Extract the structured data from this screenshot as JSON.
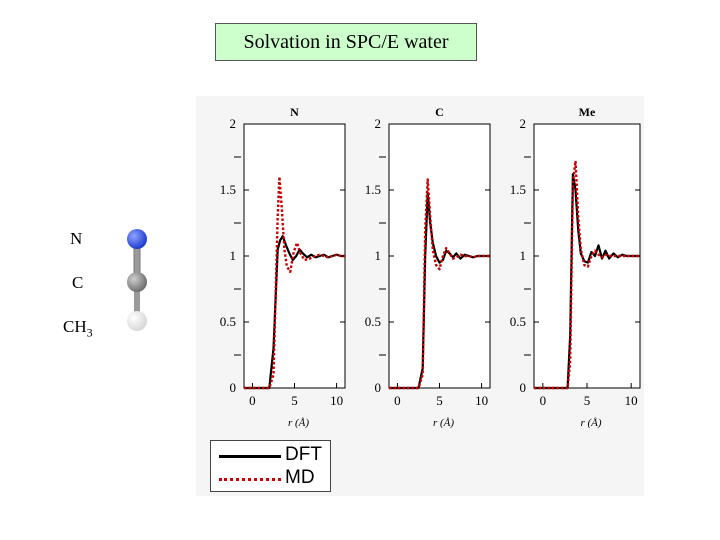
{
  "title": "Solvation in SPC/E water",
  "molecule": {
    "labels": [
      "N",
      "C",
      "CH",
      "3"
    ],
    "colors": {
      "N": "#1f3fd0",
      "C": "#6f6f6f",
      "CH3": "#d9d9d9"
    }
  },
  "legend": {
    "entries": [
      {
        "name": "DFT",
        "color": "#000000",
        "dash": "solid"
      },
      {
        "name": "MD",
        "color": "#cc0000",
        "dash": "dotted"
      }
    ]
  },
  "chart_data": [
    {
      "type": "line",
      "title": "N",
      "xlabel": "r (Å)",
      "ylabel": "",
      "xlim": [
        -1,
        11
      ],
      "ylim": [
        0,
        2
      ],
      "xticks": [
        "0",
        "5",
        "10"
      ],
      "yticks": [
        "0",
        "0.5",
        "1",
        "1.5",
        "2"
      ],
      "series": [
        {
          "name": "DFT",
          "color": "#000000",
          "x": [
            -1,
            2,
            2.5,
            3,
            3.3,
            3.6,
            4.0,
            4.4,
            4.8,
            5.2,
            5.6,
            6.0,
            6.5,
            7,
            7.5,
            8,
            8.5,
            9,
            9.5,
            10,
            10.5,
            11
          ],
          "y": [
            0,
            0,
            0.3,
            1.05,
            1.12,
            1.15,
            1.08,
            1.02,
            0.97,
            1.0,
            1.05,
            1.02,
            0.99,
            1.01,
            0.99,
            1.0,
            1.01,
            0.99,
            1.0,
            1.01,
            1.0,
            1.0
          ]
        },
        {
          "name": "MD",
          "color": "#cc0000",
          "x": [
            -1,
            2,
            2.5,
            3,
            3.2,
            3.5,
            3.8,
            4.1,
            4.5,
            4.9,
            5.3,
            5.7,
            6.2,
            6.8,
            7.5,
            8,
            8.5,
            9,
            9.5,
            10,
            10.5,
            11
          ],
          "y": [
            0,
            0,
            0.1,
            1.3,
            1.6,
            1.35,
            1.05,
            0.92,
            0.88,
            1.03,
            1.1,
            1.02,
            0.97,
            0.98,
            1.0,
            1.01,
            1.0,
            0.99,
            1.0,
            1.01,
            1.0,
            1.0
          ]
        }
      ]
    },
    {
      "type": "line",
      "title": "C",
      "xlabel": "r (Å)",
      "ylabel": "",
      "xlim": [
        -1,
        11
      ],
      "ylim": [
        0,
        2
      ],
      "xticks": [
        "0",
        "5",
        "10"
      ],
      "yticks": [
        "0",
        "0.5",
        "1",
        "1.5",
        "2"
      ],
      "series": [
        {
          "name": "DFT",
          "color": "#000000",
          "x": [
            -1,
            2.5,
            3,
            3.3,
            3.6,
            3.9,
            4.2,
            4.6,
            5.0,
            5.4,
            5.8,
            6.2,
            6.6,
            7,
            7.5,
            8,
            8.5,
            9,
            9.5,
            10,
            10.5,
            11
          ],
          "y": [
            0,
            0,
            0.15,
            1.0,
            1.48,
            1.25,
            1.1,
            1.0,
            0.95,
            0.97,
            1.04,
            1.02,
            0.99,
            1.02,
            0.98,
            1.01,
            1.0,
            0.99,
            1.0,
            1.0,
            1.0,
            1.0
          ]
        },
        {
          "name": "MD",
          "color": "#cc0000",
          "x": [
            -1,
            2.5,
            3,
            3.3,
            3.6,
            3.9,
            4.2,
            4.6,
            5.0,
            5.4,
            5.8,
            6.2,
            6.6,
            7,
            7.5,
            8,
            8.5,
            9,
            9.5,
            10,
            10.5,
            11
          ],
          "y": [
            0,
            0,
            0.1,
            1.2,
            1.58,
            1.3,
            1.05,
            0.93,
            0.9,
            1.0,
            1.06,
            1.02,
            0.98,
            0.99,
            1.01,
            1.0,
            1.0,
            0.99,
            1.0,
            1.0,
            1.0,
            1.0
          ]
        }
      ]
    },
    {
      "type": "line",
      "title": "Me",
      "xlabel": "r (Å)",
      "ylabel": "",
      "xlim": [
        -1,
        11
      ],
      "ylim": [
        0,
        2
      ],
      "xticks": [
        "0",
        "5",
        "10"
      ],
      "yticks": [
        "0",
        "0.5",
        "1",
        "1.5",
        "2"
      ],
      "series": [
        {
          "name": "DFT",
          "color": "#000000",
          "x": [
            -1,
            2.8,
            3.1,
            3.4,
            3.7,
            4.0,
            4.3,
            4.7,
            5.1,
            5.5,
            5.9,
            6.3,
            6.7,
            7.1,
            7.5,
            8,
            8.5,
            9,
            9.5,
            10,
            10.5,
            11
          ],
          "y": [
            0,
            0,
            0.4,
            1.62,
            1.5,
            1.2,
            1.02,
            0.96,
            0.95,
            1.03,
            1.0,
            1.08,
            0.98,
            1.04,
            0.98,
            1.02,
            0.99,
            1.01,
            1.0,
            1.0,
            1.0,
            1.0
          ]
        },
        {
          "name": "MD",
          "color": "#cc0000",
          "x": [
            -1,
            2.8,
            3.1,
            3.4,
            3.7,
            4.0,
            4.3,
            4.7,
            5.1,
            5.5,
            5.9,
            6.3,
            6.7,
            7.1,
            7.5,
            8,
            8.5,
            9,
            9.5,
            10,
            10.5,
            11
          ],
          "y": [
            0,
            0,
            0.2,
            1.55,
            1.72,
            1.3,
            1.05,
            0.93,
            0.92,
            1.0,
            1.04,
            1.01,
            0.99,
            1.01,
            1.0,
            1.0,
            1.0,
            1.0,
            1.0,
            1.0,
            1.0,
            1.0
          ]
        }
      ]
    }
  ]
}
